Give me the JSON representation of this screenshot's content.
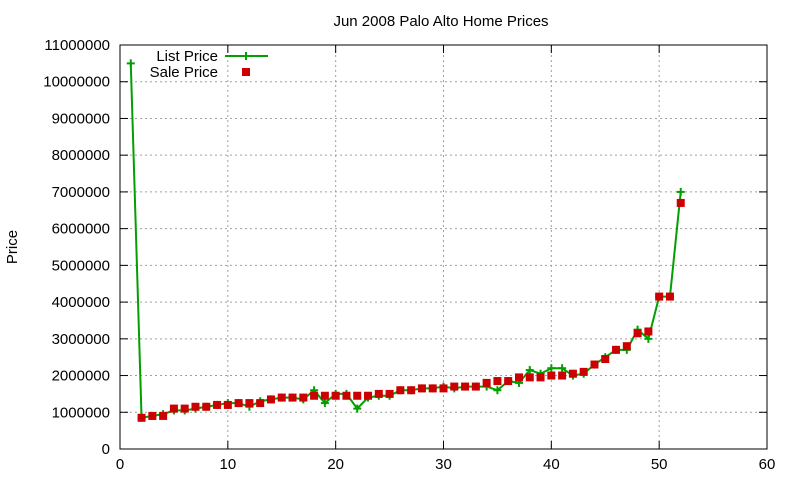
{
  "chart_data": {
    "type": "line",
    "title": "Jun 2008 Palo Alto Home Prices",
    "xlabel": "",
    "ylabel": "Price",
    "xlim": [
      0,
      60
    ],
    "ylim": [
      0,
      11000000
    ],
    "x_ticks": [
      "0",
      "10",
      "20",
      "30",
      "40",
      "50",
      "60"
    ],
    "y_ticks": [
      "0",
      "1000000",
      "2000000",
      "3000000",
      "4000000",
      "5000000",
      "6000000",
      "7000000",
      "8000000",
      "9000000",
      "10000000",
      "11000000"
    ],
    "x_tick_values": [
      0,
      10,
      20,
      30,
      40,
      50,
      60
    ],
    "y_tick_values": [
      0,
      1000000,
      2000000,
      3000000,
      4000000,
      5000000,
      6000000,
      7000000,
      8000000,
      9000000,
      10000000,
      11000000
    ],
    "grid": true,
    "legend_position": "top-left",
    "series": [
      {
        "name": "List Price",
        "style": "lines+crosses",
        "color": "#00a000",
        "x": [
          1,
          2,
          3,
          4,
          5,
          6,
          7,
          8,
          9,
          10,
          11,
          12,
          13,
          14,
          15,
          16,
          17,
          18,
          19,
          20,
          21,
          22,
          23,
          24,
          25,
          26,
          27,
          28,
          29,
          30,
          31,
          32,
          33,
          34,
          35,
          36,
          37,
          38,
          39,
          40,
          41,
          42,
          43,
          44,
          45,
          46,
          47,
          48,
          49,
          50,
          51,
          52
        ],
        "values": [
          10500000,
          850000,
          900000,
          950000,
          1050000,
          1050000,
          1100000,
          1150000,
          1200000,
          1250000,
          1250000,
          1150000,
          1300000,
          1350000,
          1400000,
          1400000,
          1350000,
          1600000,
          1250000,
          1500000,
          1500000,
          1100000,
          1400000,
          1450000,
          1450000,
          1600000,
          1600000,
          1650000,
          1650000,
          1700000,
          1650000,
          1700000,
          1700000,
          1700000,
          1600000,
          1850000,
          1800000,
          2150000,
          2050000,
          2200000,
          2200000,
          2000000,
          2050000,
          2300000,
          2500000,
          2700000,
          2700000,
          3250000,
          3000000,
          4150000,
          4150000,
          7000000
        ]
      },
      {
        "name": "Sale Price",
        "style": "points",
        "color": "#cc0000",
        "x": [
          2,
          3,
          4,
          5,
          6,
          7,
          8,
          9,
          10,
          11,
          12,
          13,
          14,
          15,
          16,
          17,
          18,
          19,
          20,
          21,
          22,
          23,
          24,
          25,
          26,
          27,
          28,
          29,
          30,
          31,
          32,
          33,
          34,
          35,
          36,
          37,
          38,
          39,
          40,
          41,
          42,
          43,
          44,
          45,
          46,
          47,
          48,
          49,
          50,
          51,
          52
        ],
        "values": [
          850000,
          900000,
          900000,
          1100000,
          1100000,
          1150000,
          1150000,
          1200000,
          1200000,
          1250000,
          1250000,
          1250000,
          1350000,
          1400000,
          1400000,
          1400000,
          1450000,
          1450000,
          1450000,
          1450000,
          1450000,
          1450000,
          1500000,
          1500000,
          1600000,
          1600000,
          1650000,
          1650000,
          1650000,
          1700000,
          1700000,
          1700000,
          1800000,
          1850000,
          1850000,
          1950000,
          1950000,
          1950000,
          2000000,
          2000000,
          2050000,
          2100000,
          2300000,
          2450000,
          2700000,
          2800000,
          3150000,
          3200000,
          4150000,
          4150000,
          6700000
        ]
      }
    ]
  }
}
